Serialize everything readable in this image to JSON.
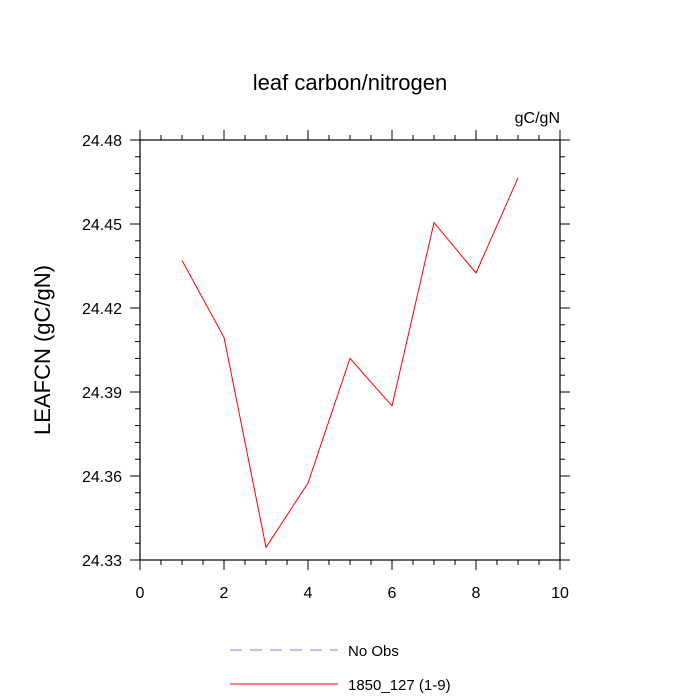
{
  "chart_data": {
    "type": "line",
    "title": "leaf carbon/nitrogen",
    "units_label": "gC/gN",
    "ylabel": "LEAFCN  (gC/gN)",
    "xlabel": "",
    "xlim": [
      0,
      10
    ],
    "ylim": [
      24.33,
      24.48
    ],
    "xticks": [
      0,
      2,
      4,
      6,
      8,
      10
    ],
    "xtick_labels": [
      "0",
      "2",
      "4",
      "6",
      "8",
      "10"
    ],
    "yticks": [
      24.33,
      24.36,
      24.39,
      24.42,
      24.45,
      24.48
    ],
    "ytick_labels": [
      "24.33",
      "24.36",
      "24.39",
      "24.42",
      "24.45",
      "24.48"
    ],
    "grid": false,
    "legend_position": "bottom",
    "series": [
      {
        "name": "1850_127 (1-9)",
        "color": "#ff0000",
        "x": [
          1,
          2,
          3,
          4,
          5,
          6,
          7,
          8,
          9
        ],
        "y": [
          24.437,
          24.4095,
          24.3345,
          24.3575,
          24.402,
          24.385,
          24.4505,
          24.4325,
          24.4665
        ]
      }
    ],
    "legend": [
      {
        "label": "No Obs",
        "color": "#8080ff",
        "style": "dashed"
      },
      {
        "label": "1850_127 (1-9)",
        "color": "#ff0000",
        "style": "solid"
      }
    ]
  }
}
